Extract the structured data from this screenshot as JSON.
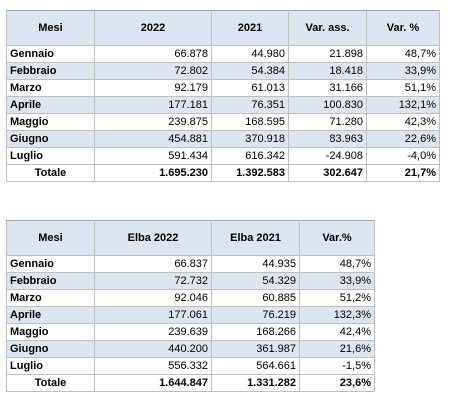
{
  "table1": {
    "headers": [
      "Mesi",
      "2022",
      "2021",
      "Var. ass.",
      "Var. %"
    ],
    "rows": [
      [
        "Gennaio",
        "66.878",
        "44.980",
        "21.898",
        "48,7%"
      ],
      [
        "Febbraio",
        "72.802",
        "54.384",
        "18.418",
        "33,9%"
      ],
      [
        "Marzo",
        "92.179",
        "61.013",
        "31.166",
        "51,1%"
      ],
      [
        "Aprile",
        "177.181",
        "76.351",
        "100.830",
        "132,1%"
      ],
      [
        "Maggio",
        "239.875",
        "168.595",
        "71.280",
        "42,3%"
      ],
      [
        "Giugno",
        "454.881",
        "370.918",
        "83.963",
        "22,6%"
      ],
      [
        "Luglio",
        "591.434",
        "616.342",
        "-24.908",
        "-4,0%"
      ]
    ],
    "total": [
      "Totale",
      "1.695.230",
      "1.392.583",
      "302.647",
      "21,7%"
    ]
  },
  "table2": {
    "headers": [
      "Mesi",
      "Elba 2022",
      "Elba 2021",
      "Var.%"
    ],
    "rows": [
      [
        "Gennaio",
        "66.837",
        "44.935",
        "48,7%"
      ],
      [
        "Febbraio",
        "72.732",
        "54.329",
        "33,9%"
      ],
      [
        "Marzo",
        "92.046",
        "60.885",
        "51,2%"
      ],
      [
        "Aprile",
        "177.061",
        "76.219",
        "132,3%"
      ],
      [
        "Maggio",
        "239.639",
        "168.266",
        "42,4%"
      ],
      [
        "Giugno",
        "440.200",
        "361.987",
        "21,6%"
      ],
      [
        "Luglio",
        "556.332",
        "564.661",
        "-1,5%"
      ]
    ],
    "total": [
      "Totale",
      "1.644.847",
      "1.331.282",
      "23,6%"
    ]
  },
  "colors": {
    "header_bg": "#dce6f1",
    "alt_row_bg": "#dce6f1",
    "border": "#bfbfbf"
  }
}
